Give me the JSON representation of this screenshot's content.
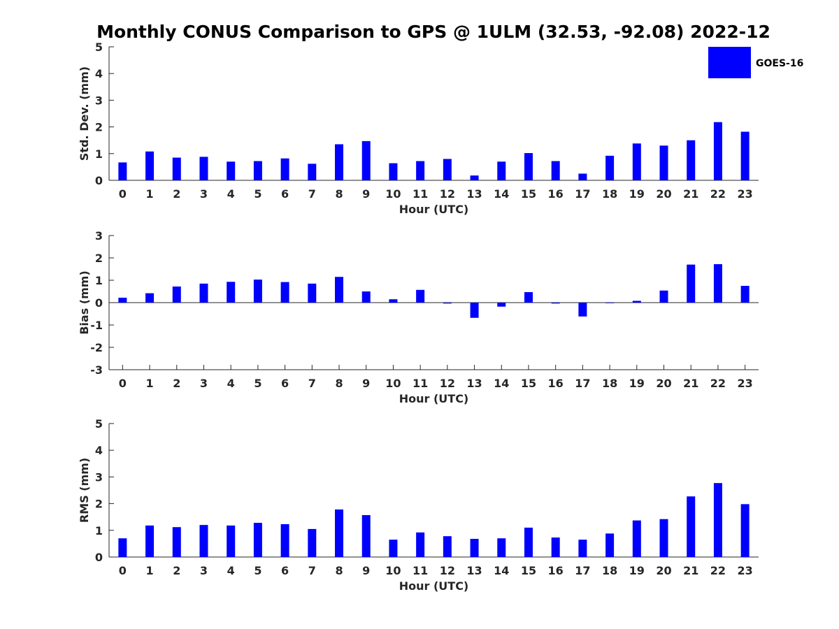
{
  "chart_data": {
    "title": "Monthly CONUS Comparison to GPS @ 1ULM (32.53, -92.08) 2022-12",
    "legend": {
      "label": "GOES-16",
      "color": "#0000ff",
      "position": "top-right"
    },
    "categories": [
      "0",
      "1",
      "2",
      "3",
      "4",
      "5",
      "6",
      "7",
      "8",
      "9",
      "10",
      "11",
      "12",
      "13",
      "14",
      "15",
      "16",
      "17",
      "18",
      "19",
      "20",
      "21",
      "22",
      "23"
    ],
    "panels": [
      {
        "type": "bar",
        "series_name": "GOES-16",
        "ylabel": "Std. Dev. (mm)",
        "xlabel": "Hour (UTC)",
        "ylim": [
          0,
          5
        ],
        "yticks": [
          "0",
          "1",
          "2",
          "3",
          "4",
          "5"
        ],
        "values": [
          0.67,
          1.08,
          0.85,
          0.88,
          0.7,
          0.72,
          0.82,
          0.62,
          1.35,
          1.47,
          0.64,
          0.72,
          0.8,
          0.18,
          0.7,
          1.02,
          0.72,
          0.25,
          0.92,
          1.38,
          1.3,
          1.5,
          2.18,
          1.82
        ]
      },
      {
        "type": "bar",
        "series_name": "GOES-16",
        "ylabel": "Bias (mm)",
        "xlabel": "Hour (UTC)",
        "ylim": [
          -3,
          3
        ],
        "yticks": [
          "-3",
          "-2",
          "-1",
          "0",
          "1",
          "2",
          "3"
        ],
        "values": [
          0.22,
          0.42,
          0.72,
          0.85,
          0.93,
          1.03,
          0.92,
          0.85,
          1.15,
          0.5,
          0.15,
          0.57,
          -0.04,
          -0.68,
          -0.18,
          0.47,
          -0.04,
          -0.62,
          -0.01,
          0.08,
          0.54,
          1.7,
          1.72,
          0.75
        ]
      },
      {
        "type": "bar",
        "series_name": "GOES-16",
        "ylabel": "RMS (mm)",
        "xlabel": "Hour (UTC)",
        "ylim": [
          0,
          5
        ],
        "yticks": [
          "0",
          "1",
          "2",
          "3",
          "4",
          "5"
        ],
        "values": [
          0.7,
          1.18,
          1.12,
          1.2,
          1.18,
          1.28,
          1.23,
          1.05,
          1.78,
          1.57,
          0.65,
          0.92,
          0.78,
          0.68,
          0.7,
          1.1,
          0.73,
          0.65,
          0.88,
          1.37,
          1.42,
          2.27,
          2.77,
          1.98
        ]
      }
    ]
  }
}
